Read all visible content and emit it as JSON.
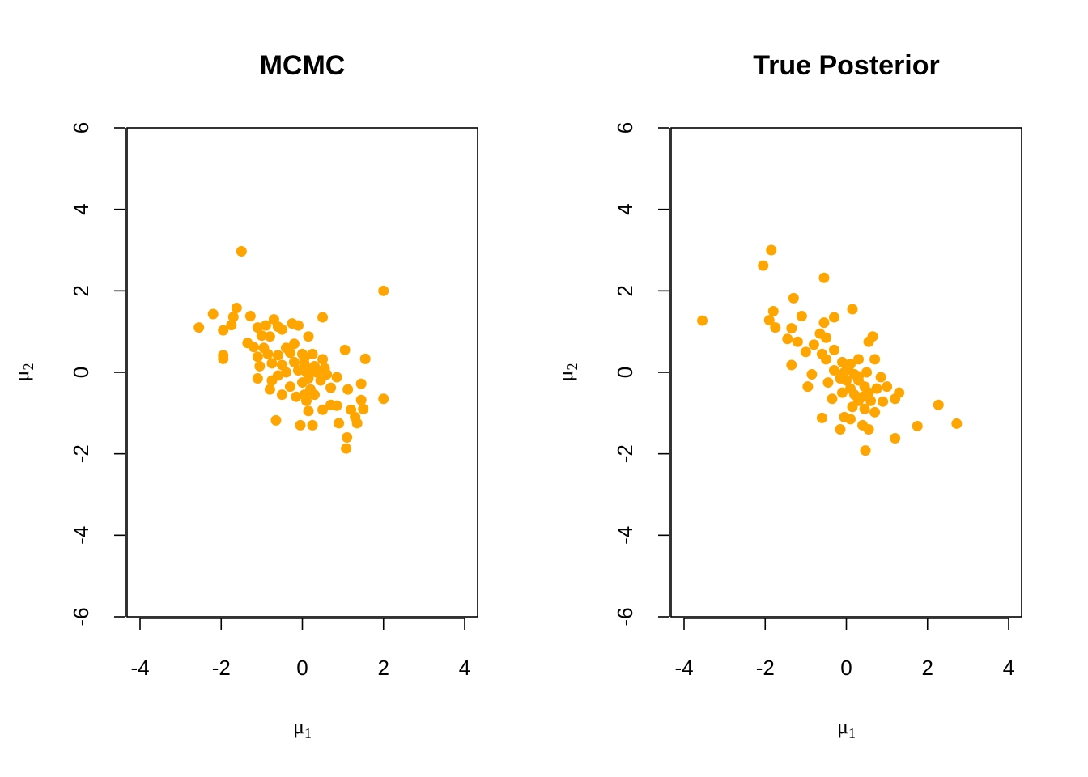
{
  "chart_data": [
    {
      "type": "scatter",
      "title": "MCMC",
      "xlabel": "μ",
      "xlabel_sub": "1",
      "ylabel": "μ",
      "ylabel_sub": "2",
      "xlim": [
        -4,
        4
      ],
      "ylim": [
        -6,
        6
      ],
      "xticks": [
        -4,
        -2,
        0,
        2,
        4
      ],
      "yticks": [
        -6,
        -4,
        -2,
        0,
        2,
        4,
        6
      ],
      "point_color": "#FFA500",
      "grid": false,
      "points": [
        [
          -1.5,
          2.97
        ],
        [
          2.0,
          2.0
        ],
        [
          -1.62,
          1.58
        ],
        [
          -2.2,
          1.43
        ],
        [
          -1.7,
          1.36
        ],
        [
          -1.28,
          1.38
        ],
        [
          -2.55,
          1.1
        ],
        [
          -1.95,
          1.03
        ],
        [
          -1.75,
          1.16
        ],
        [
          -0.7,
          1.3
        ],
        [
          -0.6,
          1.12
        ],
        [
          -0.25,
          1.2
        ],
        [
          -0.1,
          1.15
        ],
        [
          -1.1,
          1.1
        ],
        [
          -0.9,
          1.15
        ],
        [
          0.5,
          1.35
        ],
        [
          -1.35,
          0.72
        ],
        [
          -1.0,
          0.9
        ],
        [
          -0.8,
          0.88
        ],
        [
          -0.5,
          1.05
        ],
        [
          0.15,
          0.88
        ],
        [
          -1.2,
          0.62
        ],
        [
          -0.95,
          0.6
        ],
        [
          -0.4,
          0.6
        ],
        [
          -0.2,
          0.7
        ],
        [
          1.05,
          0.55
        ],
        [
          -1.95,
          0.42
        ],
        [
          -1.95,
          0.33
        ],
        [
          -1.1,
          0.38
        ],
        [
          -0.85,
          0.45
        ],
        [
          -0.6,
          0.42
        ],
        [
          -0.3,
          0.48
        ],
        [
          0.0,
          0.45
        ],
        [
          0.25,
          0.45
        ],
        [
          0.5,
          0.32
        ],
        [
          -1.05,
          0.15
        ],
        [
          -0.75,
          0.22
        ],
        [
          -0.5,
          0.18
        ],
        [
          -0.2,
          0.25
        ],
        [
          0.05,
          0.22
        ],
        [
          0.3,
          0.15
        ],
        [
          0.55,
          0.1
        ],
        [
          1.55,
          0.33
        ],
        [
          -0.4,
          0.0
        ],
        [
          -0.1,
          0.05
        ],
        [
          0.1,
          0.0
        ],
        [
          0.35,
          0.0
        ],
        [
          0.6,
          -0.05
        ],
        [
          -0.6,
          -0.08
        ],
        [
          -1.1,
          -0.15
        ],
        [
          -0.75,
          -0.2
        ],
        [
          0.15,
          -0.15
        ],
        [
          0.45,
          -0.2
        ],
        [
          0.85,
          -0.12
        ],
        [
          -0.8,
          -0.42
        ],
        [
          -0.3,
          -0.35
        ],
        [
          0.0,
          -0.25
        ],
        [
          0.2,
          -0.42
        ],
        [
          0.7,
          -0.38
        ],
        [
          1.12,
          -0.42
        ],
        [
          1.45,
          -0.28
        ],
        [
          -0.5,
          -0.55
        ],
        [
          0.05,
          -0.55
        ],
        [
          0.3,
          -0.55
        ],
        [
          1.45,
          -0.68
        ],
        [
          2.0,
          -0.65
        ],
        [
          0.15,
          -0.95
        ],
        [
          0.5,
          -0.92
        ],
        [
          0.7,
          -0.8
        ],
        [
          0.85,
          -0.82
        ],
        [
          1.2,
          -0.92
        ],
        [
          1.5,
          -0.9
        ],
        [
          1.3,
          -1.1
        ],
        [
          -0.65,
          -1.18
        ],
        [
          -0.05,
          -1.3
        ],
        [
          0.25,
          -1.3
        ],
        [
          0.9,
          -1.25
        ],
        [
          1.35,
          -1.25
        ],
        [
          1.1,
          -1.6
        ],
        [
          1.08,
          -1.87
        ],
        [
          0.1,
          -0.7
        ],
        [
          -0.15,
          -0.6
        ],
        [
          0.25,
          0.1
        ],
        [
          0.05,
          0.35
        ]
      ]
    },
    {
      "type": "scatter",
      "title": "True Posterior",
      "xlabel": "μ",
      "xlabel_sub": "1",
      "ylabel": "μ",
      "ylabel_sub": "2",
      "xlim": [
        -4,
        4
      ],
      "ylim": [
        -6,
        6
      ],
      "xticks": [
        -4,
        -2,
        0,
        2,
        4
      ],
      "yticks": [
        -6,
        -4,
        -2,
        0,
        2,
        4,
        6
      ],
      "point_color": "#FFA500",
      "grid": false,
      "points": [
        [
          -1.85,
          3.0
        ],
        [
          -2.05,
          2.62
        ],
        [
          -0.55,
          2.32
        ],
        [
          -3.55,
          1.27
        ],
        [
          -1.9,
          1.28
        ],
        [
          -1.8,
          1.5
        ],
        [
          -1.3,
          1.82
        ],
        [
          -1.1,
          1.38
        ],
        [
          -0.3,
          1.35
        ],
        [
          0.15,
          1.55
        ],
        [
          -0.55,
          1.22
        ],
        [
          -1.35,
          1.08
        ],
        [
          -1.75,
          1.1
        ],
        [
          -1.45,
          0.82
        ],
        [
          -1.2,
          0.75
        ],
        [
          -0.65,
          0.95
        ],
        [
          -0.5,
          0.85
        ],
        [
          -0.8,
          0.68
        ],
        [
          0.55,
          0.75
        ],
        [
          0.65,
          0.88
        ],
        [
          -1.0,
          0.5
        ],
        [
          -0.6,
          0.45
        ],
        [
          -0.3,
          0.55
        ],
        [
          -0.1,
          0.25
        ],
        [
          0.1,
          0.2
        ],
        [
          0.3,
          0.32
        ],
        [
          0.7,
          0.32
        ],
        [
          -0.5,
          0.32
        ],
        [
          -1.35,
          0.18
        ],
        [
          -0.3,
          0.05
        ],
        [
          -0.05,
          0.0
        ],
        [
          0.2,
          -0.05
        ],
        [
          0.5,
          0.0
        ],
        [
          -0.85,
          -0.05
        ],
        [
          -0.45,
          -0.25
        ],
        [
          0.0,
          -0.2
        ],
        [
          0.3,
          -0.2
        ],
        [
          0.85,
          -0.12
        ],
        [
          -0.95,
          -0.35
        ],
        [
          0.1,
          -0.4
        ],
        [
          0.45,
          -0.35
        ],
        [
          0.75,
          -0.4
        ],
        [
          1.0,
          -0.35
        ],
        [
          -0.1,
          -0.5
        ],
        [
          0.2,
          -0.55
        ],
        [
          0.55,
          -0.5
        ],
        [
          1.3,
          -0.5
        ],
        [
          -0.35,
          -0.65
        ],
        [
          0.3,
          -0.7
        ],
        [
          0.6,
          -0.7
        ],
        [
          0.9,
          -0.72
        ],
        [
          1.2,
          -0.65
        ],
        [
          0.15,
          -0.85
        ],
        [
          0.45,
          -0.9
        ],
        [
          0.7,
          -0.98
        ],
        [
          2.27,
          -0.8
        ],
        [
          -0.6,
          -1.12
        ],
        [
          -0.05,
          -1.1
        ],
        [
          0.1,
          -1.15
        ],
        [
          0.4,
          -1.3
        ],
        [
          0.55,
          -1.4
        ],
        [
          -0.15,
          -1.4
        ],
        [
          1.75,
          -1.32
        ],
        [
          2.72,
          -1.26
        ],
        [
          1.2,
          -1.62
        ],
        [
          0.47,
          -1.92
        ],
        [
          0.3,
          -0.1
        ],
        [
          -0.15,
          -0.15
        ],
        [
          0.05,
          0.1
        ],
        [
          0.4,
          -0.6
        ]
      ]
    }
  ]
}
